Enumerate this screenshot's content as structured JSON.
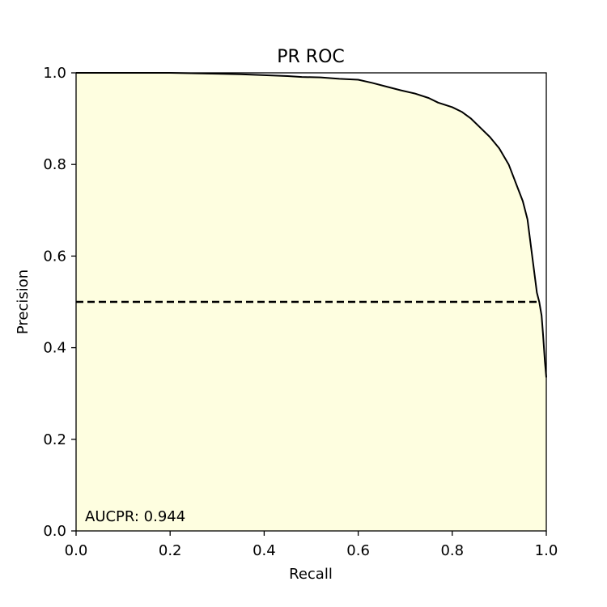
{
  "colors": {
    "fill": "#fefee0",
    "curve": "#000000",
    "baseline": "#000000",
    "axes": "#000000"
  },
  "chart_data": {
    "type": "area",
    "title": "PR ROC",
    "xlabel": "Recall",
    "ylabel": "Precision",
    "xlim": [
      0,
      1
    ],
    "ylim": [
      0,
      1
    ],
    "xticks": [
      "0.0",
      "0.2",
      "0.4",
      "0.6",
      "0.8",
      "1.0"
    ],
    "yticks": [
      "0.0",
      "0.2",
      "0.4",
      "0.6",
      "0.8",
      "1.0"
    ],
    "grid": false,
    "annotation": "AUCPR: 0.944",
    "baseline": {
      "y": 0.5,
      "x_range": [
        0,
        0.985
      ],
      "style": "dashed"
    },
    "series": [
      {
        "points": [
          [
            0.0,
            1.0
          ],
          [
            0.1,
            1.0
          ],
          [
            0.2,
            1.0
          ],
          [
            0.3,
            0.998
          ],
          [
            0.35,
            0.997
          ],
          [
            0.4,
            0.995
          ],
          [
            0.45,
            0.993
          ],
          [
            0.48,
            0.991
          ],
          [
            0.52,
            0.99
          ],
          [
            0.56,
            0.987
          ],
          [
            0.6,
            0.985
          ],
          [
            0.63,
            0.978
          ],
          [
            0.66,
            0.97
          ],
          [
            0.69,
            0.962
          ],
          [
            0.72,
            0.955
          ],
          [
            0.75,
            0.945
          ],
          [
            0.77,
            0.935
          ],
          [
            0.8,
            0.925
          ],
          [
            0.82,
            0.915
          ],
          [
            0.84,
            0.9
          ],
          [
            0.86,
            0.88
          ],
          [
            0.88,
            0.86
          ],
          [
            0.9,
            0.835
          ],
          [
            0.92,
            0.8
          ],
          [
            0.935,
            0.76
          ],
          [
            0.95,
            0.72
          ],
          [
            0.96,
            0.68
          ],
          [
            0.965,
            0.64
          ],
          [
            0.97,
            0.6
          ],
          [
            0.975,
            0.56
          ],
          [
            0.98,
            0.52
          ],
          [
            0.985,
            0.5
          ],
          [
            0.99,
            0.47
          ],
          [
            0.993,
            0.43
          ],
          [
            0.995,
            0.4
          ],
          [
            0.997,
            0.37
          ],
          [
            1.0,
            0.335
          ]
        ]
      }
    ]
  }
}
